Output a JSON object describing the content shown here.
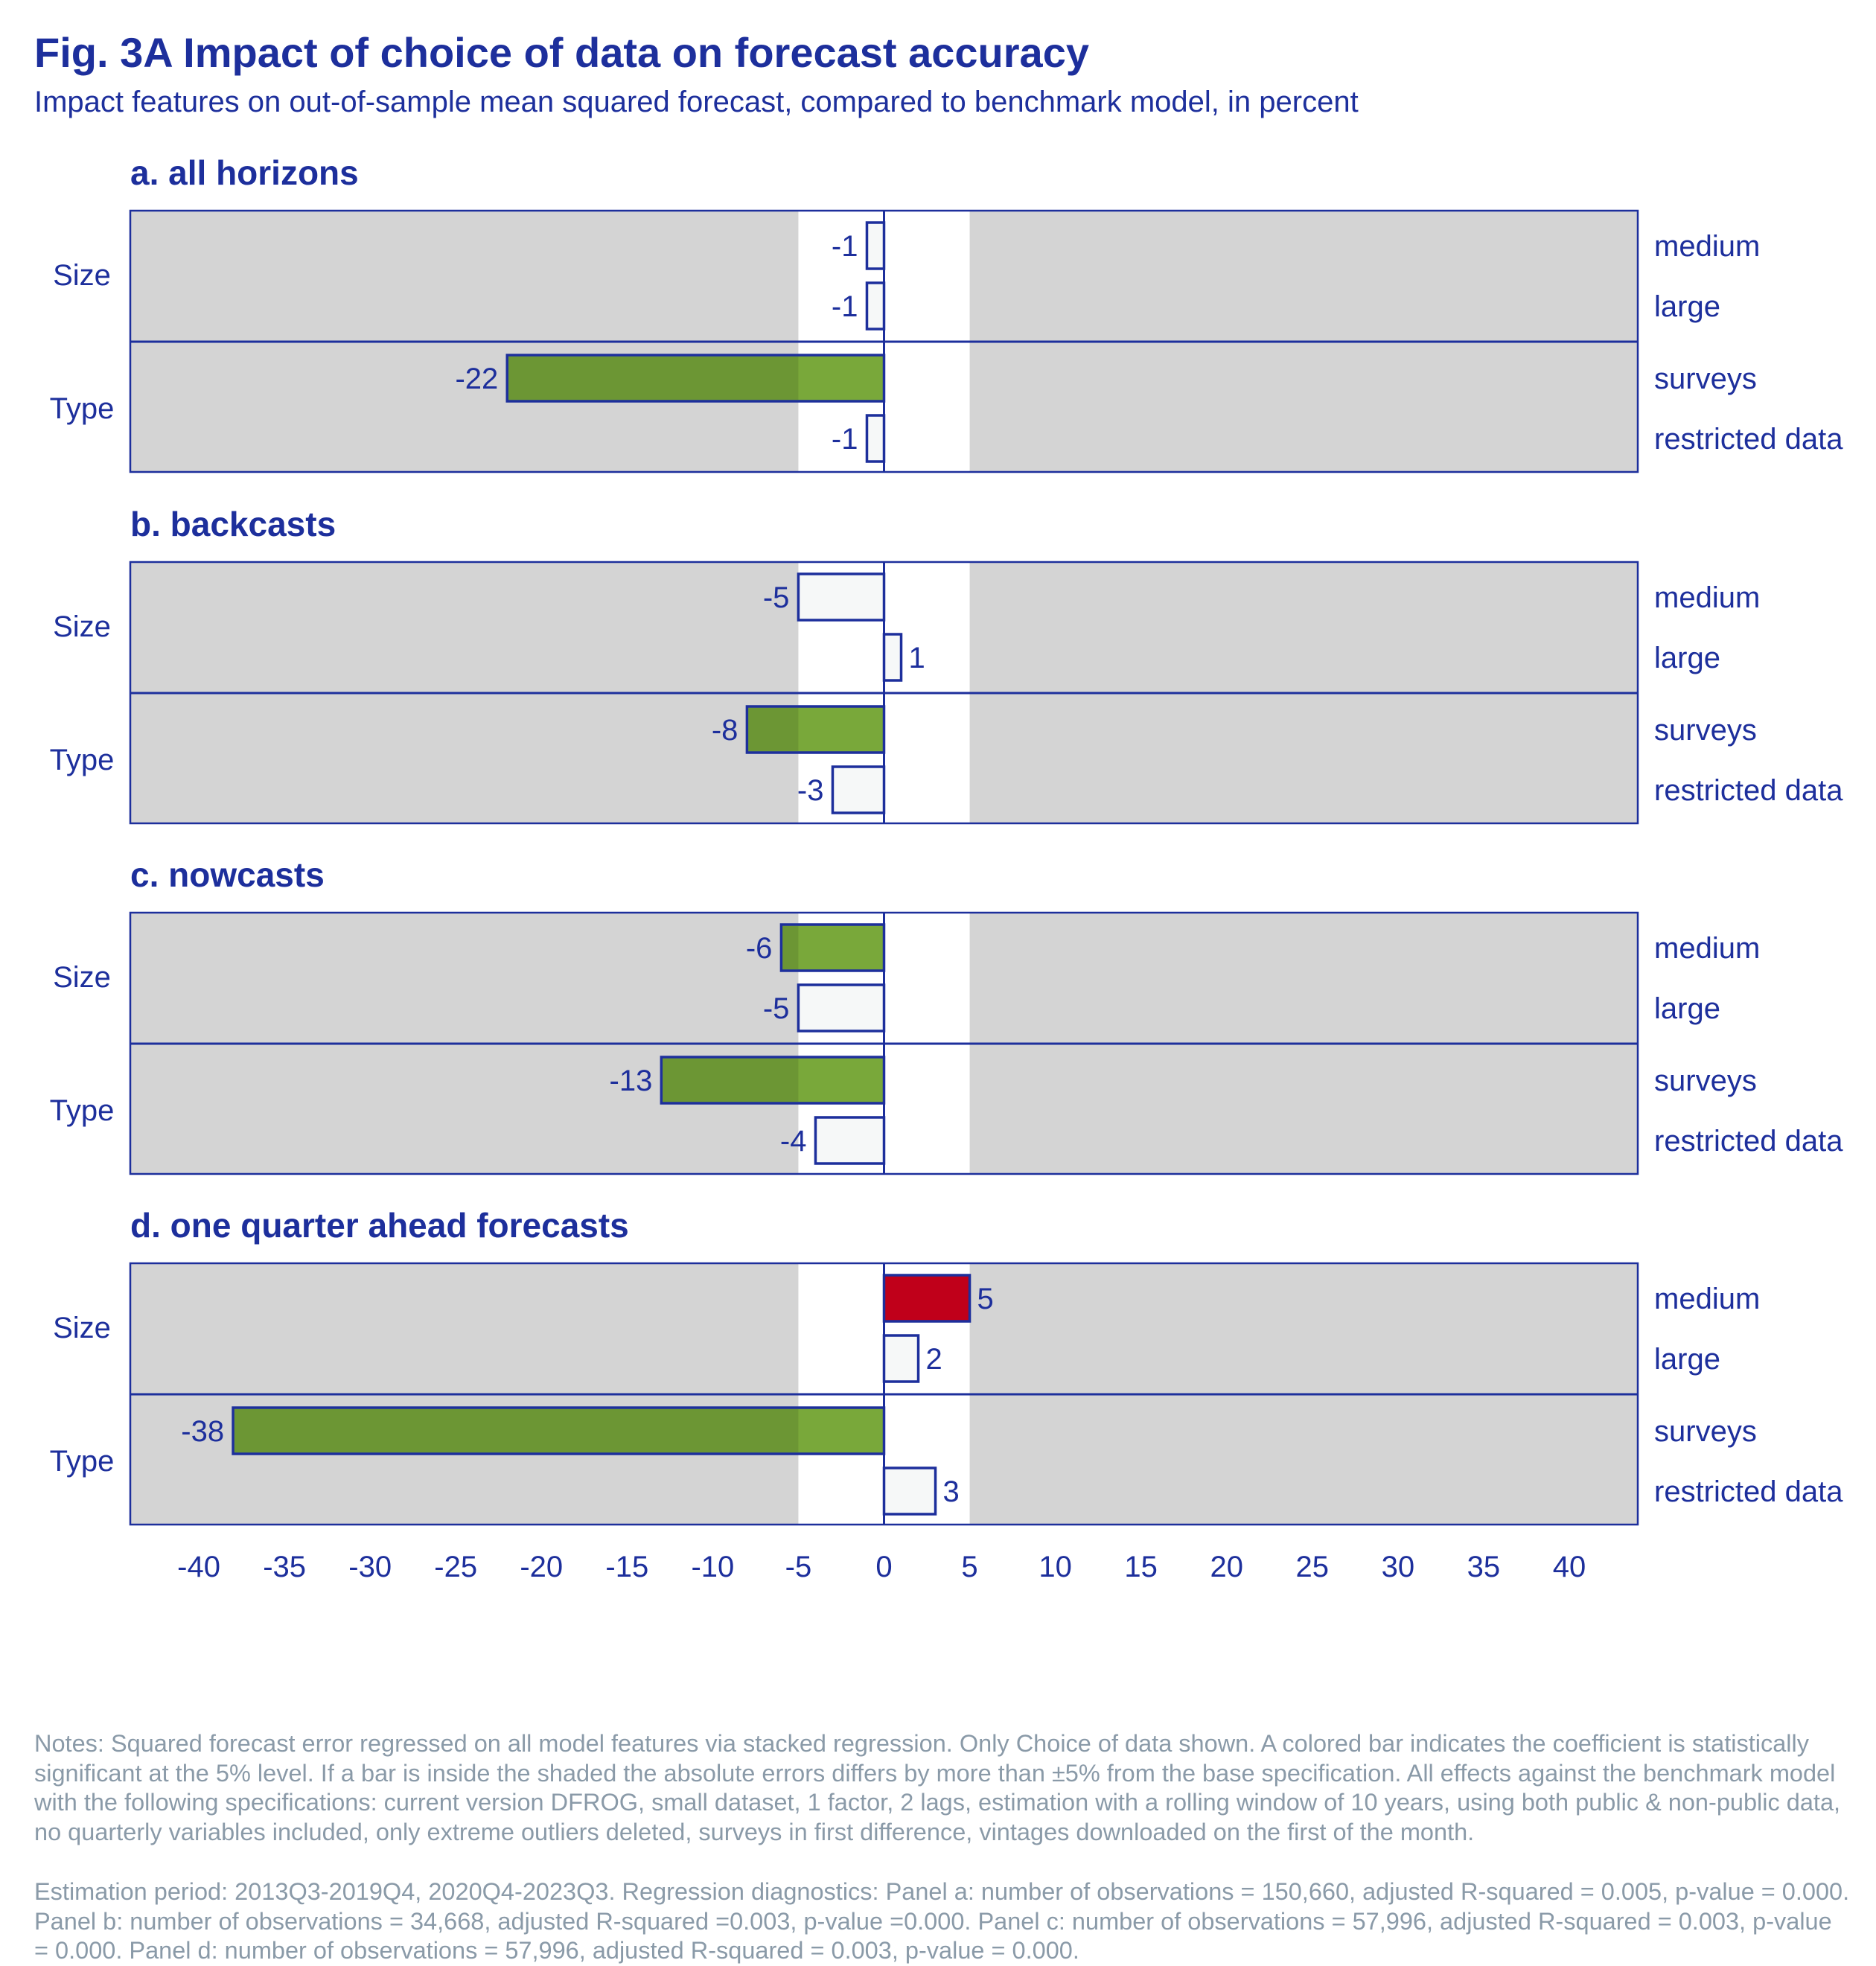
{
  "title": "Fig. 3A Impact of choice of data on forecast accuracy",
  "subtitle": "Impact features on out-of-sample mean squared forecast, compared to benchmark model, in percent",
  "notes": [
    "Notes: Squared forecast error regressed on all model features via stacked regression. Only Choice of data shown. A colored bar indicates the coefficient is statistically significant at the 5% level. If a bar is inside the shaded the absolute errors differs by more than ±5% from the base specification. All effects against the benchmark model with the following specifications: current version DFROG, small dataset, 1 factor, 2 lags, estimation with a rolling window of 10 years, using both public & non-public data, no quarterly variables included, only extreme outliers deleted, surveys in first difference, vintages downloaded on the first of the month.",
    " Estimation period: 2013Q3-2019Q4, 2020Q4-2023Q3. Regression diagnostics: Panel a: number of observations = 150,660, adjusted R-squared = 0.005, p-value = 0.000. Panel b: number of observations = 34,668, adjusted R-squared =0.003, p-value =0.000. Panel c: number of observations = 57,996, adjusted R-squared = 0.003, p-value = 0.000. Panel d: number of observations = 57,996, adjusted R-squared = 0.003, p-value = 0.000."
  ],
  "colors": {
    "text": "#1d2f9c",
    "frame": "#1d2f9c",
    "shade": "#d4d4d4",
    "unshaded_band": "#ffffff",
    "bar_insignificant": "#f6f8f8",
    "bar_significant_negative": "#79a83a",
    "bar_significant_positive": "#c0001a",
    "notes": "#8a9aa8"
  },
  "chart_data": {
    "type": "bar",
    "orientation": "horizontal",
    "xlim": [
      -44,
      44
    ],
    "xticks": [
      -40,
      -35,
      -30,
      -25,
      -20,
      -15,
      -10,
      -5,
      0,
      5,
      10,
      15,
      20,
      25,
      30,
      35,
      40
    ],
    "shaded_outside": [
      -5,
      5
    ],
    "groups": [
      "Size",
      "Type"
    ],
    "categories": [
      "medium",
      "large",
      "surveys",
      "restricted data"
    ],
    "panels": [
      {
        "title": "a. all horizons",
        "values": [
          -1,
          -1,
          -22,
          -1
        ],
        "significant": [
          false,
          false,
          true,
          false
        ]
      },
      {
        "title": "b. backcasts",
        "values": [
          -5,
          1,
          -8,
          -3
        ],
        "significant": [
          false,
          false,
          true,
          false
        ]
      },
      {
        "title": "c. nowcasts",
        "values": [
          -6,
          -5,
          -13,
          -4
        ],
        "significant": [
          true,
          false,
          true,
          false
        ]
      },
      {
        "title": "d. one quarter ahead forecasts",
        "values": [
          5,
          2,
          -38,
          3
        ],
        "significant": [
          true,
          false,
          true,
          false
        ]
      }
    ]
  }
}
